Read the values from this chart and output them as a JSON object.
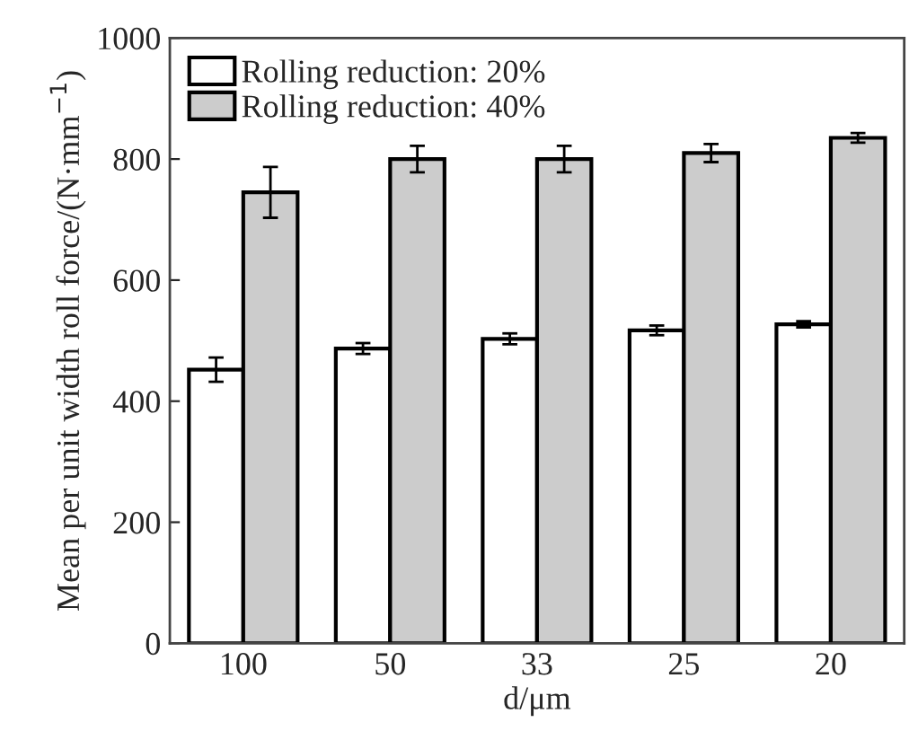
{
  "chart_data": {
    "type": "bar",
    "xlabel": "d/μm",
    "ylabel": "Mean per unit width roll force/(N·mm$^{−1}$)",
    "categories": [
      "100",
      "50",
      "33",
      "25",
      "20"
    ],
    "series": [
      {
        "name": "Rolling reduction: 20%",
        "color": "#ffffff",
        "values": [
          452,
          487,
          503,
          517,
          527
        ],
        "errors": [
          20,
          9,
          9,
          8,
          5
        ]
      },
      {
        "name": "Rolling reduction: 40%",
        "color": "#cccccc",
        "values": [
          745,
          800,
          800,
          810,
          835
        ],
        "errors": [
          42,
          22,
          22,
          15,
          8
        ]
      }
    ],
    "ylim": [
      0,
      1000
    ],
    "yticks": [
      0,
      200,
      400,
      600,
      800,
      1000
    ],
    "legend": "top left",
    "grid": false
  }
}
